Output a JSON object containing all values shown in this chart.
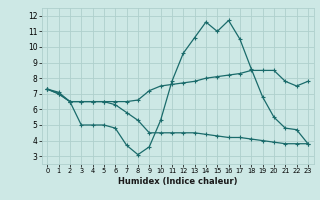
{
  "xlabel": "Humidex (Indice chaleur)",
  "bg_color": "#cde8e5",
  "grid_color": "#afd0cd",
  "line_color": "#1a6b6b",
  "line1_x": [
    0,
    1,
    2,
    3,
    4,
    5,
    6,
    7,
    8,
    9,
    10,
    11,
    12,
    13,
    14,
    15,
    16,
    17,
    18,
    19,
    20,
    21,
    22,
    23
  ],
  "line1_y": [
    7.3,
    7.0,
    6.5,
    5.0,
    5.0,
    5.0,
    4.8,
    3.7,
    3.1,
    3.6,
    5.3,
    7.8,
    9.6,
    10.6,
    11.6,
    11.0,
    11.7,
    10.5,
    8.6,
    6.8,
    5.5,
    4.8,
    4.7,
    3.8
  ],
  "line2_x": [
    0,
    1,
    2,
    3,
    4,
    5,
    6,
    7,
    8,
    9,
    10,
    11,
    12,
    13,
    14,
    15,
    16,
    17,
    18,
    19,
    20,
    21,
    22,
    23
  ],
  "line2_y": [
    7.3,
    7.1,
    6.5,
    6.5,
    6.5,
    6.5,
    6.5,
    6.5,
    6.6,
    7.2,
    7.5,
    7.6,
    7.7,
    7.8,
    8.0,
    8.1,
    8.2,
    8.3,
    8.5,
    8.5,
    8.5,
    7.8,
    7.5,
    7.8
  ],
  "line3_x": [
    0,
    1,
    2,
    3,
    4,
    5,
    6,
    7,
    8,
    9,
    10,
    11,
    12,
    13,
    14,
    15,
    16,
    17,
    18,
    19,
    20,
    21,
    22,
    23
  ],
  "line3_y": [
    7.3,
    7.0,
    6.5,
    6.5,
    6.5,
    6.5,
    6.3,
    5.8,
    5.3,
    4.5,
    4.5,
    4.5,
    4.5,
    4.5,
    4.4,
    4.3,
    4.2,
    4.2,
    4.1,
    4.0,
    3.9,
    3.8,
    3.8,
    3.8
  ],
  "xlim": [
    -0.5,
    23.5
  ],
  "ylim": [
    2.5,
    12.5
  ],
  "yticks": [
    3,
    4,
    5,
    6,
    7,
    8,
    9,
    10,
    11,
    12
  ],
  "xticks": [
    0,
    1,
    2,
    3,
    4,
    5,
    6,
    7,
    8,
    9,
    10,
    11,
    12,
    13,
    14,
    15,
    16,
    17,
    18,
    19,
    20,
    21,
    22,
    23
  ]
}
